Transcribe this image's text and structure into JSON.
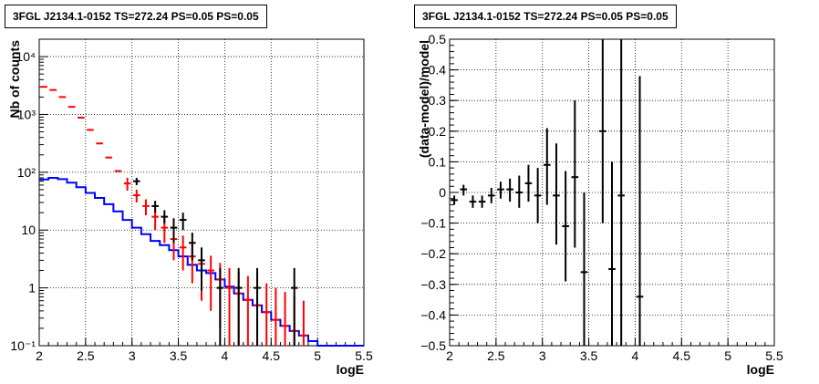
{
  "chart_data": [
    {
      "type": "line",
      "title": "3FGL J2134.1-0152 TS=272.24 PS=0.05 PS=0.05",
      "xlabel": "logE",
      "ylabel": "Nb of counts",
      "xlim": [
        2,
        5.5
      ],
      "ylim": [
        0.1,
        20000
      ],
      "yscale": "log",
      "grid": true,
      "x_ticks": [
        "2",
        "2.5",
        "3",
        "3.5",
        "4",
        "4.5",
        "5",
        "5.5"
      ],
      "y_ticks": [
        "10⁻¹",
        "1",
        "10",
        "10²",
        "10³",
        "10⁴"
      ],
      "y_tick_values": [
        0.1,
        1,
        10,
        100,
        1000,
        10000
      ],
      "series": [
        {
          "color": "#0000ff",
          "style": "step",
          "edges": [
            2.0,
            2.1,
            2.2,
            2.3,
            2.4,
            2.5,
            2.6,
            2.7,
            2.8,
            2.9,
            3.0,
            3.1,
            3.2,
            3.3,
            3.4,
            3.5,
            3.6,
            3.7,
            3.8,
            3.9,
            4.0,
            4.1,
            4.2,
            4.3,
            4.4,
            4.5,
            4.6,
            4.7,
            4.8,
            4.9,
            5.0,
            5.1,
            5.2,
            5.3,
            5.4,
            5.5
          ],
          "values": [
            75,
            80,
            76,
            66,
            55,
            44,
            36,
            28,
            21,
            15,
            11,
            8.5,
            6.5,
            5.5,
            4.5,
            3.5,
            2.5,
            2,
            1.8,
            1.4,
            1.05,
            0.8,
            0.62,
            0.5,
            0.38,
            0.28,
            0.22,
            0.18,
            0.15,
            0.12,
            0.1,
            0.1,
            0.1,
            0.1,
            0.1
          ]
        },
        {
          "color": "#ff0000",
          "style": "errorbar",
          "points": [
            {
              "x": 2.05,
              "y": 3000
            },
            {
              "x": 2.15,
              "y": 2650
            },
            {
              "x": 2.25,
              "y": 2000
            },
            {
              "x": 2.35,
              "y": 1350
            },
            {
              "x": 2.45,
              "y": 880
            },
            {
              "x": 2.55,
              "y": 540
            },
            {
              "x": 2.65,
              "y": 315
            },
            {
              "x": 2.75,
              "y": 180
            },
            {
              "x": 2.85,
              "y": 105
            },
            {
              "x": 2.95,
              "y": 64,
              "lo": 48,
              "hi": 80
            },
            {
              "x": 3.05,
              "y": 40,
              "lo": 30,
              "hi": 50
            },
            {
              "x": 3.15,
              "y": 26,
              "lo": 18,
              "hi": 34
            },
            {
              "x": 3.25,
              "y": 17,
              "lo": 10,
              "hi": 24
            },
            {
              "x": 3.35,
              "y": 11,
              "lo": 6,
              "hi": 17
            },
            {
              "x": 3.45,
              "y": 7,
              "lo": 3,
              "hi": 11
            },
            {
              "x": 3.55,
              "y": 5,
              "lo": 2,
              "hi": 8
            },
            {
              "x": 3.65,
              "y": 3.5,
              "lo": 1.2,
              "hi": 6
            },
            {
              "x": 3.75,
              "y": 2.6,
              "lo": 0.6,
              "hi": 4.5
            },
            {
              "x": 3.85,
              "y": 2,
              "lo": 0.4,
              "hi": 3.6
            },
            {
              "x": 3.95,
              "y": 1.4,
              "lo": 0.2,
              "hi": 2.7
            },
            {
              "x": 4.05,
              "y": 1,
              "lo": 0.1,
              "hi": 2.2
            },
            {
              "x": 4.15,
              "y": 0.8,
              "lo": 0.1,
              "hi": 1.9
            },
            {
              "x": 4.25,
              "y": 0.62,
              "lo": 0.1,
              "hi": 1.6
            },
            {
              "x": 4.35,
              "y": 0.5,
              "lo": 0.1,
              "hi": 1.4
            },
            {
              "x": 4.45,
              "y": 0.38,
              "lo": 0.1,
              "hi": 1.2
            },
            {
              "x": 4.55,
              "y": 0.28,
              "lo": 0.1,
              "hi": 1.0
            },
            {
              "x": 4.65,
              "y": 0.22,
              "lo": 0.1,
              "hi": 0.85
            },
            {
              "x": 4.75,
              "y": 0.18,
              "lo": 0.1,
              "hi": 0.7
            },
            {
              "x": 4.85,
              "y": 0.15,
              "lo": 0.1,
              "hi": 0.6
            }
          ]
        },
        {
          "color": "#000000",
          "style": "errorbar",
          "points": [
            {
              "x": 3.05,
              "y": 70,
              "lo": 60,
              "hi": 80
            },
            {
              "x": 3.25,
              "y": 26,
              "lo": 20,
              "hi": 32
            },
            {
              "x": 3.35,
              "y": 17,
              "lo": 13,
              "hi": 22
            },
            {
              "x": 3.45,
              "y": 11,
              "lo": 6,
              "hi": 16
            },
            {
              "x": 3.55,
              "y": 15,
              "lo": 10,
              "hi": 20
            },
            {
              "x": 3.65,
              "y": 6,
              "lo": 3,
              "hi": 9
            },
            {
              "x": 3.75,
              "y": 3,
              "lo": 0.9,
              "hi": 5
            },
            {
              "x": 3.95,
              "y": 1,
              "lo": 0.1,
              "hi": 2.2
            },
            {
              "x": 4.15,
              "y": 1,
              "lo": 0.1,
              "hi": 2.2
            },
            {
              "x": 4.35,
              "y": 1,
              "lo": 0.1,
              "hi": 2.2
            },
            {
              "x": 4.75,
              "y": 1,
              "lo": 0.1,
              "hi": 2.2
            }
          ]
        }
      ]
    },
    {
      "type": "scatter",
      "title": "3FGL J2134.1-0152 TS=272.24 PS=0.05 PS=0.05",
      "xlabel": "logE",
      "ylabel": "(data-model)/model",
      "xlim": [
        2,
        5.5
      ],
      "ylim": [
        -0.5,
        0.5
      ],
      "grid": true,
      "x_ticks": [
        "2",
        "2.5",
        "3",
        "3.5",
        "4",
        "4.5",
        "5",
        "5.5"
      ],
      "y_ticks": [
        "−0.5",
        "−0.4",
        "−0.3",
        "−0.2",
        "−0.1",
        "0",
        "0.1",
        "0.2",
        "0.3",
        "0.4",
        "0.5"
      ],
      "y_tick_values": [
        -0.5,
        -0.4,
        -0.3,
        -0.2,
        -0.1,
        0,
        0.1,
        0.2,
        0.3,
        0.4,
        0.5
      ],
      "series": [
        {
          "color": "#000000",
          "style": "errorbar",
          "points": [
            {
              "x": 2.05,
              "y": -0.025,
              "lo": -0.04,
              "hi": -0.01
            },
            {
              "x": 2.15,
              "y": 0.01,
              "lo": -0.01,
              "hi": 0.025
            },
            {
              "x": 2.25,
              "y": -0.03,
              "lo": -0.05,
              "hi": -0.01
            },
            {
              "x": 2.35,
              "y": -0.03,
              "lo": -0.05,
              "hi": -0.01
            },
            {
              "x": 2.45,
              "y": -0.01,
              "lo": -0.035,
              "hi": 0.015
            },
            {
              "x": 2.55,
              "y": 0.01,
              "lo": -0.02,
              "hi": 0.035
            },
            {
              "x": 2.65,
              "y": 0.01,
              "lo": -0.03,
              "hi": 0.045
            },
            {
              "x": 2.75,
              "y": 0.0,
              "lo": -0.05,
              "hi": 0.055
            },
            {
              "x": 2.85,
              "y": 0.03,
              "lo": -0.03,
              "hi": 0.09
            },
            {
              "x": 2.95,
              "y": -0.01,
              "lo": -0.1,
              "hi": 0.08
            },
            {
              "x": 3.05,
              "y": 0.09,
              "lo": -0.04,
              "hi": 0.21
            },
            {
              "x": 3.15,
              "y": -0.01,
              "lo": -0.17,
              "hi": 0.16
            },
            {
              "x": 3.25,
              "y": -0.11,
              "lo": -0.29,
              "hi": 0.07
            },
            {
              "x": 3.35,
              "y": 0.05,
              "lo": -0.18,
              "hi": 0.3
            },
            {
              "x": 3.45,
              "y": -0.26,
              "lo": -0.5,
              "hi": 0.0
            },
            {
              "x": 3.65,
              "y": 0.2,
              "lo": -0.1,
              "hi": 0.5
            },
            {
              "x": 3.75,
              "y": -0.25,
              "lo": -0.5,
              "hi": 0.1
            },
            {
              "x": 3.85,
              "y": -0.01,
              "lo": -0.5,
              "hi": 0.5
            },
            {
              "x": 4.05,
              "y": -0.34,
              "lo": -0.5,
              "hi": 0.38
            }
          ]
        }
      ]
    }
  ]
}
